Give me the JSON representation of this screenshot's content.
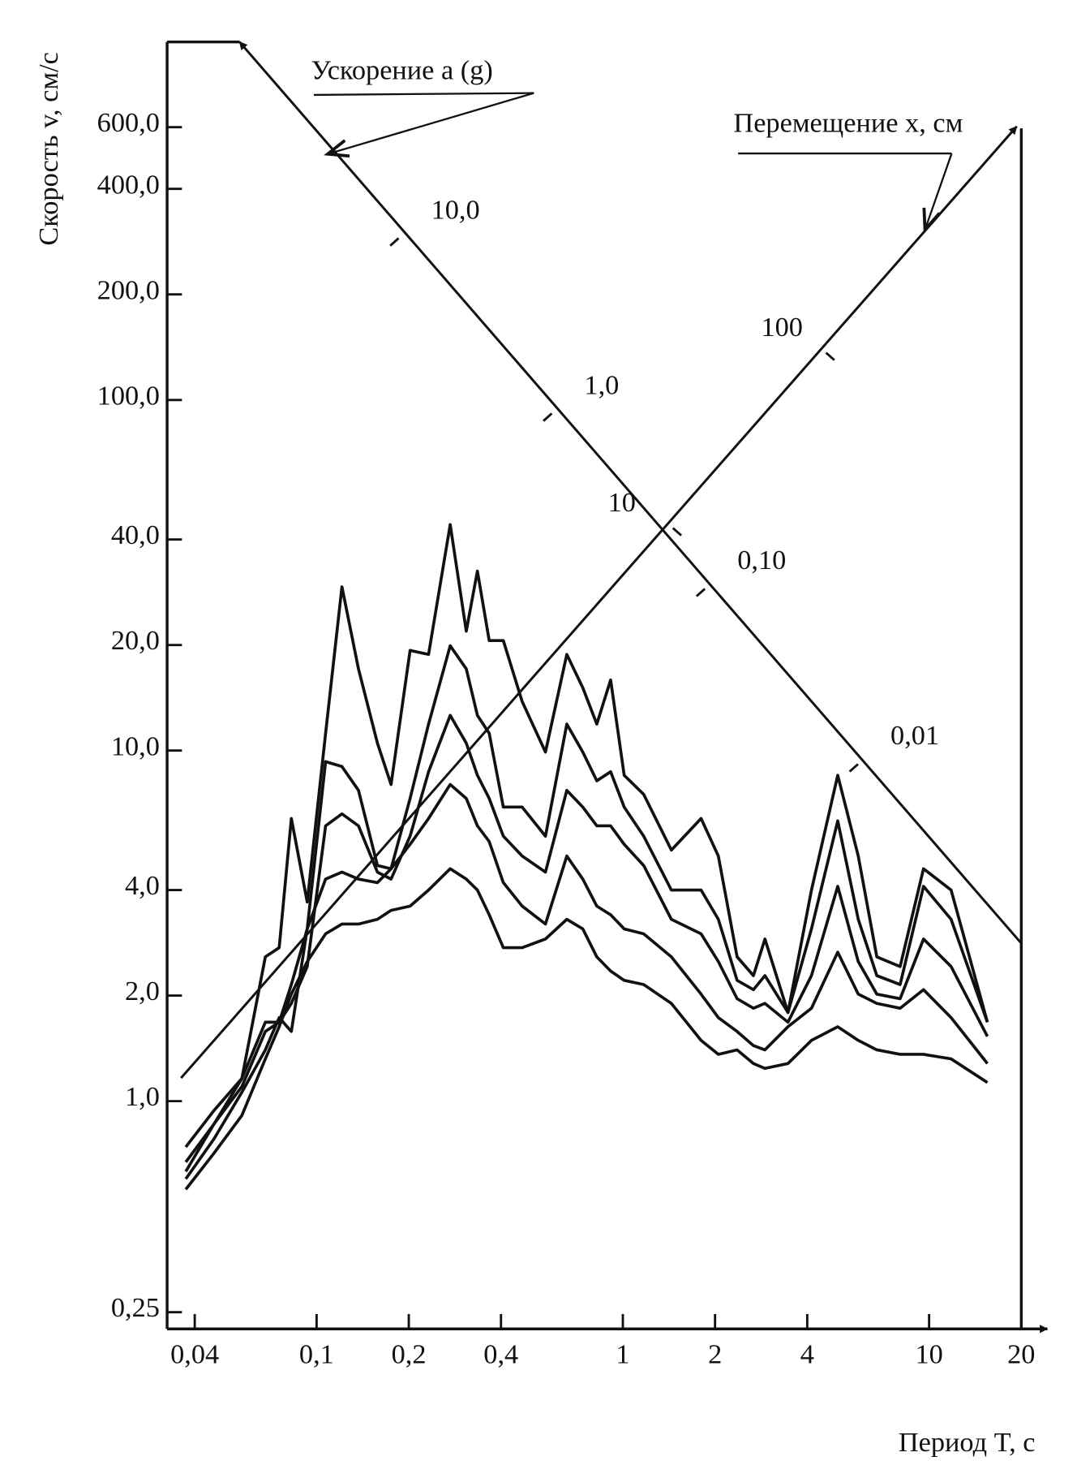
{
  "chart_data": {
    "type": "line",
    "x_label": "Период T, с",
    "y_label": "Скорость v, см/с",
    "log_x": true,
    "log_y": true,
    "xlim": [
      0.0325,
      20
    ],
    "ylim": [
      0.224,
      1050
    ],
    "xticks": [
      {
        "value": 0.04,
        "label": "0,04"
      },
      {
        "value": 0.1,
        "label": "0,1"
      },
      {
        "value": 0.2,
        "label": "0,2"
      },
      {
        "value": 0.4,
        "label": "0,4"
      },
      1,
      2,
      4,
      10,
      20
    ],
    "yticks": [
      {
        "value": 0.25,
        "label": "0,25"
      },
      {
        "value": 1,
        "label": "1,0"
      },
      {
        "value": 2,
        "label": "2,0"
      },
      {
        "value": 4,
        "label": "4,0"
      },
      {
        "value": 10,
        "label": "10,0"
      },
      {
        "value": 20,
        "label": "20,0"
      },
      {
        "value": 40,
        "label": "40,0"
      },
      {
        "value": 100,
        "label": "100,0"
      },
      {
        "value": 200,
        "label": "200,0"
      },
      {
        "value": 400,
        "label": "400,0"
      },
      {
        "value": 600,
        "label": "600,0"
      }
    ],
    "x": [
      0.0374,
      0.0462,
      0.057,
      0.068,
      0.0755,
      0.0827,
      0.0932,
      0.107,
      0.121,
      0.137,
      0.158,
      0.175,
      0.202,
      0.232,
      0.273,
      0.308,
      0.335,
      0.366,
      0.407,
      0.469,
      0.559,
      0.656,
      0.74,
      0.822,
      0.912,
      1.01,
      1.17,
      1.44,
      1.8,
      2.05,
      2.36,
      2.67,
      2.91,
      3.46,
      4.13,
      5.03,
      5.87,
      6.75,
      8.04,
      9.59,
      11.8,
      15.5
    ],
    "series": [
      {
        "color": "#111111",
        "values": [
          0.74,
          0.94,
          1.16,
          2.58,
          2.74,
          6.4,
          3.7,
          11.2,
          29.3,
          17.1,
          10.5,
          8.0,
          19.3,
          18.8,
          44.1,
          21.9,
          32.5,
          20.6,
          20.6,
          13.8,
          9.9,
          18.8,
          15.1,
          11.9,
          15.9,
          8.5,
          7.5,
          5.2,
          6.4,
          5.0,
          2.58,
          2.28,
          2.9,
          1.79,
          4.0,
          8.5,
          5.0,
          2.58,
          2.42,
          4.6,
          4.0,
          1.68
        ]
      },
      {
        "color": "#111111",
        "values": [
          0.67,
          0.86,
          1.16,
          1.68,
          1.68,
          2.15,
          3.1,
          9.3,
          9.0,
          7.7,
          4.7,
          4.6,
          7.3,
          11.9,
          19.9,
          17.1,
          12.6,
          11.2,
          6.9,
          6.9,
          5.7,
          11.9,
          9.9,
          8.2,
          8.7,
          6.9,
          5.7,
          4.0,
          4.0,
          3.3,
          2.21,
          2.08,
          2.28,
          1.79,
          3.1,
          6.3,
          3.3,
          2.28,
          2.15,
          4.1,
          3.3,
          1.68
        ]
      },
      {
        "color": "#111111",
        "values": [
          0.63,
          0.86,
          1.1,
          1.58,
          1.68,
          1.9,
          2.42,
          6.1,
          6.6,
          6.1,
          4.5,
          4.3,
          5.7,
          8.7,
          12.6,
          10.5,
          8.5,
          7.3,
          5.7,
          5.0,
          4.5,
          7.7,
          6.9,
          6.1,
          6.1,
          5.4,
          4.7,
          3.3,
          3.0,
          2.5,
          1.96,
          1.84,
          1.9,
          1.68,
          2.28,
          4.1,
          2.5,
          2.02,
          1.96,
          2.9,
          2.42,
          1.53
        ]
      },
      {
        "color": "#111111",
        "values": [
          0.6,
          0.78,
          1.06,
          1.4,
          1.73,
          1.58,
          3.1,
          4.3,
          4.5,
          4.3,
          4.2,
          4.6,
          5.4,
          6.4,
          8.0,
          7.3,
          6.1,
          5.5,
          4.2,
          3.6,
          3.2,
          5.0,
          4.3,
          3.6,
          3.4,
          3.1,
          3.0,
          2.58,
          2.02,
          1.73,
          1.58,
          1.44,
          1.4,
          1.63,
          1.84,
          2.66,
          2.02,
          1.9,
          1.84,
          2.08,
          1.73,
          1.28
        ]
      },
      {
        "color": "#111111",
        "values": [
          0.56,
          0.71,
          0.91,
          1.32,
          1.63,
          2.02,
          2.5,
          3.0,
          3.2,
          3.2,
          3.3,
          3.5,
          3.6,
          4.0,
          4.6,
          4.3,
          4.0,
          3.4,
          2.74,
          2.74,
          2.9,
          3.3,
          3.1,
          2.58,
          2.35,
          2.21,
          2.15,
          1.9,
          1.49,
          1.36,
          1.4,
          1.28,
          1.24,
          1.28,
          1.49,
          1.63,
          1.49,
          1.4,
          1.36,
          1.36,
          1.32,
          1.13
        ]
      }
    ],
    "acceleration_axis": {
      "label": "Ускорение a (g)",
      "ticks": [
        {
          "value": 10,
          "label": "10,0"
        },
        {
          "value": 1,
          "label": "1,0"
        },
        {
          "value": 0.1,
          "label": "0,10"
        },
        {
          "value": 0.01,
          "label": "0,01"
        }
      ]
    },
    "displacement_axis": {
      "label": "Перемещение x, см",
      "ticks": [
        10,
        100
      ]
    }
  }
}
